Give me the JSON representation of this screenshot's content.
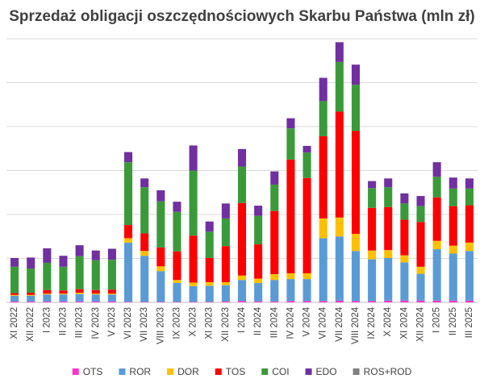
{
  "chart_data": {
    "type": "bar",
    "stacked": true,
    "title": "Sprzedaż obligacji oszczędnościowych Skarbu Państwa (mln zł)",
    "xlabel": "",
    "ylabel": "",
    "ylim": [
      0,
      6000
    ],
    "y_tick_step": 1000,
    "grid": true,
    "legend_position": "bottom",
    "categories": [
      "XI 2022",
      "XII 2022",
      "I 2023",
      "II 2023",
      "III 2023",
      "IV 2023",
      "V 2023",
      "VI 2023",
      "VII 2023",
      "VIII 2023",
      "IX 2023",
      "X 2023",
      "XI 2023",
      "XII 2023",
      "I 2024",
      "II 2024",
      "III 2024",
      "IV 2024",
      "V 2024",
      "VI 2024",
      "VII 2024",
      "VIII 2024",
      "IX 2024",
      "X 2024",
      "XI 2024",
      "XII 2024",
      "I 2025",
      "II 2025",
      "III 2025"
    ],
    "series": [
      {
        "name": "OTS",
        "color": "#FF33CC",
        "values": [
          20,
          20,
          20,
          20,
          20,
          20,
          20,
          10,
          10,
          10,
          10,
          10,
          10,
          20,
          30,
          20,
          20,
          30,
          30,
          30,
          40,
          30,
          30,
          40,
          40,
          40,
          40,
          40,
          40
        ]
      },
      {
        "name": "ROR",
        "color": "#5B9BD5",
        "values": [
          130,
          130,
          160,
          160,
          170,
          160,
          160,
          1350,
          1050,
          700,
          430,
          360,
          370,
          370,
          480,
          420,
          490,
          500,
          500,
          1430,
          1460,
          1140,
          950,
          970,
          870,
          610,
          1170,
          1070,
          1130
        ]
      },
      {
        "name": "DOR",
        "color": "#FFC000",
        "values": [
          20,
          20,
          20,
          20,
          30,
          20,
          20,
          100,
          110,
          110,
          70,
          80,
          80,
          70,
          100,
          100,
          130,
          130,
          130,
          450,
          430,
          390,
          200,
          180,
          160,
          160,
          190,
          180,
          190
        ]
      },
      {
        "name": "TOS",
        "color": "#FF0000",
        "values": [
          40,
          50,
          80,
          70,
          80,
          80,
          90,
          300,
          400,
          430,
          650,
          1070,
          550,
          820,
          1650,
          780,
          1440,
          2590,
          2170,
          1870,
          2410,
          2340,
          970,
          980,
          810,
          1020,
          990,
          900,
          850
        ]
      },
      {
        "name": "COI",
        "color": "#3A9A3A",
        "values": [
          600,
          550,
          620,
          540,
          750,
          680,
          680,
          1430,
          1050,
          1050,
          900,
          1480,
          600,
          630,
          830,
          650,
          600,
          710,
          580,
          800,
          1130,
          1050,
          450,
          450,
          370,
          360,
          470,
          400,
          380
        ]
      },
      {
        "name": "EDO",
        "color": "#7030A0",
        "values": [
          200,
          250,
          330,
          250,
          250,
          220,
          250,
          230,
          200,
          250,
          230,
          570,
          230,
          340,
          400,
          230,
          300,
          230,
          150,
          530,
          450,
          460,
          160,
          200,
          230,
          230,
          330,
          250,
          230
        ]
      },
      {
        "name": "ROS+ROD",
        "color": "#808080",
        "values": [
          0,
          0,
          0,
          0,
          0,
          0,
          0,
          0,
          0,
          0,
          0,
          0,
          0,
          0,
          0,
          0,
          0,
          0,
          0,
          0,
          0,
          0,
          0,
          0,
          0,
          0,
          0,
          0,
          0
        ]
      }
    ]
  }
}
